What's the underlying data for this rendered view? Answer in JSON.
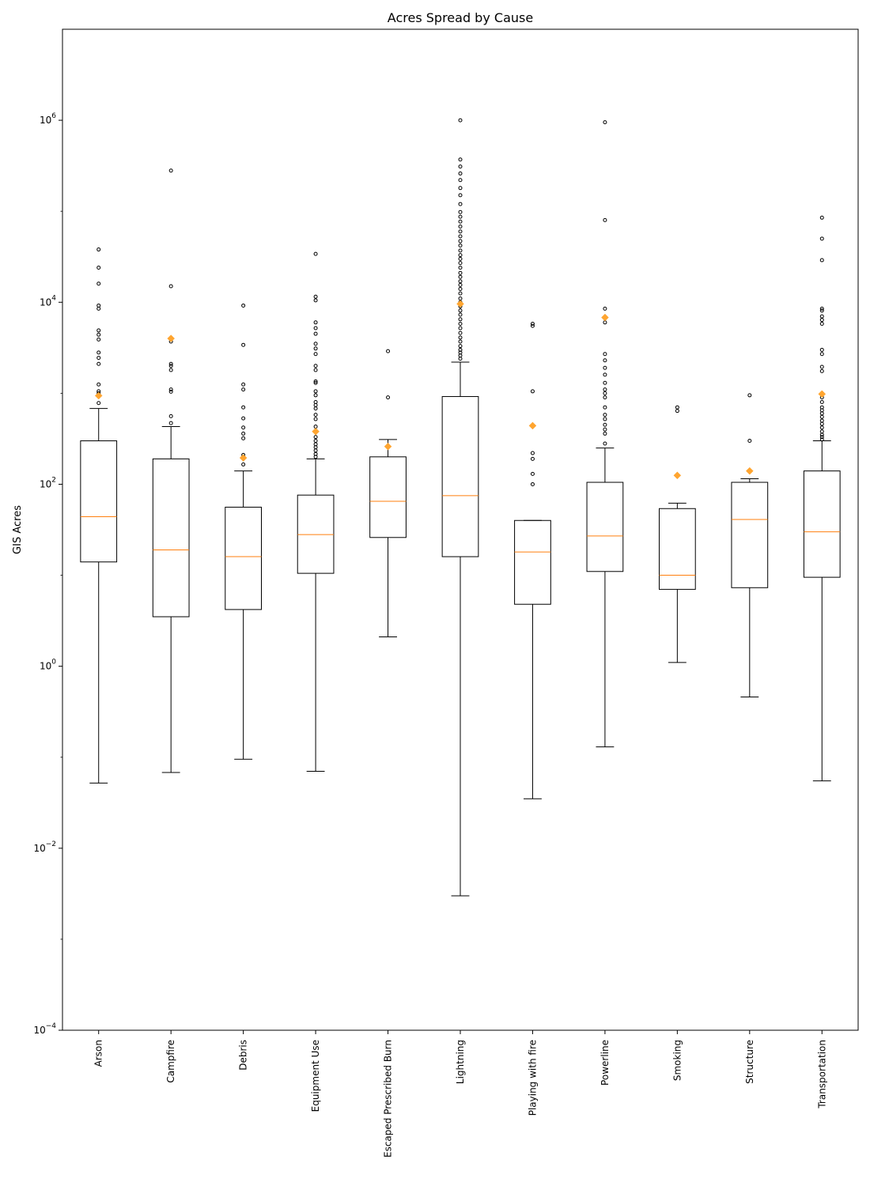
{
  "chart_data": {
    "type": "box",
    "title": "Acres Spread by Cause",
    "xlabel": "",
    "ylabel": "GIS Acres",
    "yscale": "log",
    "ylim": [
      0.0001,
      10000000
    ],
    "y_ticks": [
      {
        "value": 0.0001,
        "base": "10",
        "exp": "−4"
      },
      {
        "value": 0.01,
        "base": "10",
        "exp": "−2"
      },
      {
        "value": 1,
        "base": "10",
        "exp": "0"
      },
      {
        "value": 100,
        "base": "10",
        "exp": "2"
      },
      {
        "value": 10000,
        "base": "10",
        "exp": "4"
      },
      {
        "value": 1000000,
        "base": "10",
        "exp": "6"
      }
    ],
    "grid": false,
    "colors": {
      "box": "#000000",
      "median": "#ff7f0e",
      "mean": "#ffa530",
      "outlier": "#000000"
    },
    "categories": [
      "Arson",
      "Campfire",
      "Debris",
      "Equipment Use",
      "Escaped Prescribed Burn",
      "Lightning",
      "Playing with fire",
      "Powerline",
      "Smoking",
      "Structure",
      "Transportation"
    ],
    "boxes": [
      {
        "category": "Arson",
        "whislo": 0.052,
        "q1": 14,
        "median": 44,
        "q3": 300,
        "whishi": 680,
        "mean": 940,
        "fliers": [
          780,
          1000,
          1050,
          1250,
          2100,
          2450,
          2800,
          3900,
          4400,
          4900,
          8500,
          9200,
          16000,
          24000,
          38000
        ]
      },
      {
        "category": "Campfire",
        "whislo": 0.068,
        "q1": 3.5,
        "median": 19,
        "q3": 190,
        "whishi": 430,
        "mean": 4000,
        "fliers": [
          470,
          560,
          1040,
          1100,
          1800,
          2000,
          2100,
          3700,
          15000,
          280000
        ]
      },
      {
        "category": "Debris",
        "whislo": 0.095,
        "q1": 4.2,
        "median": 16,
        "q3": 56,
        "whishi": 140,
        "mean": 195,
        "fliers": [
          165,
          200,
          210,
          320,
          360,
          420,
          530,
          700,
          1100,
          1250,
          3400,
          9200
        ]
      },
      {
        "category": "Equipment Use",
        "whislo": 0.07,
        "q1": 10.5,
        "median": 28,
        "q3": 76,
        "whishi": 190,
        "mean": 380,
        "fliers": [
          200,
          215,
          235,
          255,
          275,
          300,
          330,
          380,
          430,
          520,
          580,
          680,
          740,
          800,
          950,
          1050,
          1300,
          1350,
          1800,
          2000,
          2700,
          3100,
          3500,
          4500,
          5200,
          6000,
          10500,
          11500,
          34000
        ]
      },
      {
        "category": "Escaped Prescribed Burn",
        "whislo": 2.1,
        "q1": 26,
        "median": 65,
        "q3": 200,
        "whishi": 310,
        "mean": 260,
        "fliers": [
          900,
          2900
        ]
      },
      {
        "category": "Lightning",
        "whislo": 0.003,
        "q1": 16,
        "median": 75,
        "q3": 920,
        "whishi": 2200,
        "mean": 9600,
        "fliers": [
          2400,
          2600,
          2800,
          3000,
          3300,
          3700,
          4100,
          4600,
          5200,
          5800,
          6500,
          7300,
          8100,
          9000,
          10000,
          11000,
          12500,
          14000,
          15500,
          17000,
          19000,
          21000,
          24000,
          27000,
          30000,
          33000,
          37000,
          42000,
          47000,
          53000,
          60000,
          68000,
          77000,
          87000,
          98000,
          120000,
          150000,
          180000,
          220000,
          260000,
          310000,
          370000,
          1000000
        ]
      },
      {
        "category": "Playing with fire",
        "whislo": 0.035,
        "q1": 4.8,
        "median": 18,
        "q3": 40,
        "whishi": 40,
        "mean": 440,
        "fliers": [
          100,
          130,
          190,
          220,
          1050,
          5500,
          5800
        ]
      },
      {
        "category": "Powerline",
        "whislo": 0.13,
        "q1": 11,
        "median": 27,
        "q3": 105,
        "whishi": 250,
        "mean": 6800,
        "fliers": [
          280,
          360,
          400,
          450,
          520,
          580,
          700,
          900,
          1000,
          1100,
          1300,
          1600,
          1900,
          2300,
          2700,
          6000,
          8500,
          80000,
          950000
        ]
      },
      {
        "category": "Smoking",
        "whislo": 1.1,
        "q1": 7,
        "median": 10,
        "q3": 54,
        "whishi": 62,
        "mean": 125,
        "fliers": [
          640,
          700
        ]
      },
      {
        "category": "Structure",
        "whislo": 0.46,
        "q1": 7.3,
        "median": 41,
        "q3": 105,
        "whishi": 115,
        "mean": 140,
        "fliers": [
          300,
          950
        ]
      },
      {
        "category": "Transportation",
        "whislo": 0.055,
        "q1": 9.5,
        "median": 30,
        "q3": 140,
        "whishi": 300,
        "mean": 980,
        "fliers": [
          310,
          330,
          350,
          380,
          420,
          460,
          500,
          550,
          600,
          650,
          700,
          800,
          900,
          1000,
          1750,
          1950,
          2700,
          3000,
          5800,
          6400,
          7000,
          8100,
          8500,
          29000,
          50000,
          85000
        ]
      }
    ]
  }
}
